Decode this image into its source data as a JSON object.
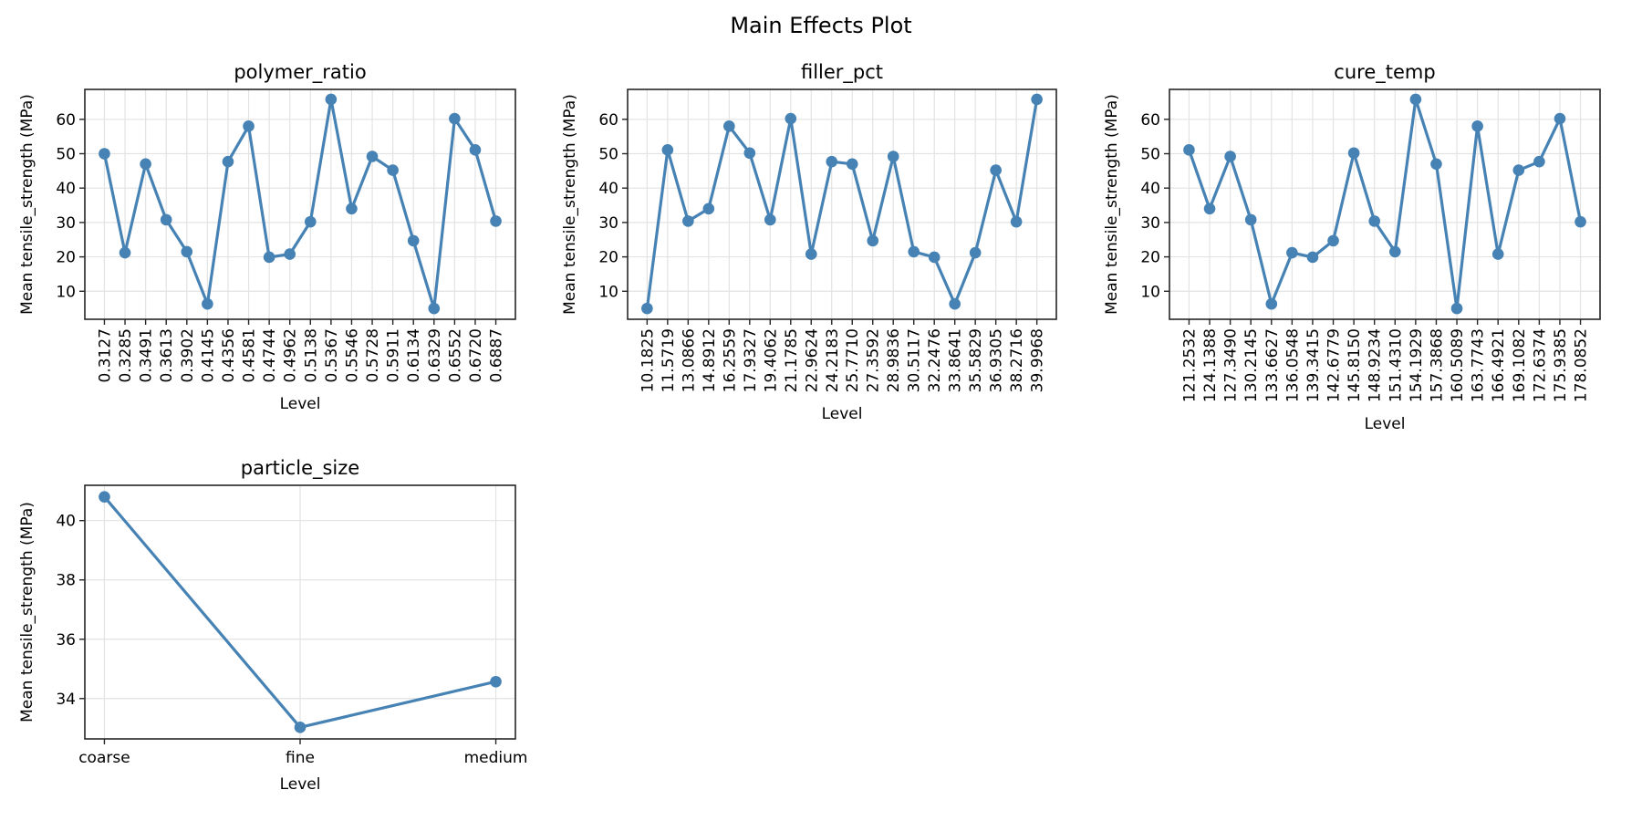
{
  "figure": {
    "title": "Main Effects Plot"
  },
  "colors": {
    "line": "#4682b4",
    "grid": "#e3e3e3",
    "axis": "#262626"
  },
  "chart_data": [
    {
      "type": "line",
      "title": "polymer_ratio",
      "xlabel": "Level",
      "ylabel": "Mean tensile_strength (MPa)",
      "categories": [
        "0.3127",
        "0.3285",
        "0.3491",
        "0.3613",
        "0.3902",
        "0.4145",
        "0.4356",
        "0.4581",
        "0.4744",
        "0.4962",
        "0.5138",
        "0.5367",
        "0.5546",
        "0.5728",
        "0.5911",
        "0.6134",
        "0.6329",
        "0.6552",
        "0.6720",
        "0.6887"
      ],
      "values": [
        50.0,
        21.2,
        47.0,
        30.8,
        21.5,
        6.3,
        47.7,
        58.0,
        19.9,
        20.8,
        30.2,
        65.8,
        34.0,
        49.2,
        45.2,
        24.7,
        5.0,
        60.2,
        51.1,
        30.4
      ],
      "yticks": [
        10,
        20,
        30,
        40,
        50,
        60
      ],
      "ylim": [
        1.85,
        68.7
      ],
      "grid": true,
      "marker": "circle"
    },
    {
      "type": "line",
      "title": "filler_pct",
      "xlabel": "Level",
      "ylabel": "Mean tensile_strength (MPa)",
      "categories": [
        "10.1825",
        "11.5719",
        "13.0866",
        "14.8912",
        "16.2559",
        "17.9327",
        "19.4062",
        "21.1785",
        "22.9624",
        "24.2183",
        "25.7710",
        "27.3592",
        "28.9836",
        "30.5117",
        "32.2476",
        "33.8641",
        "35.5829",
        "36.9305",
        "38.2716",
        "39.9968"
      ],
      "values": [
        5.0,
        51.1,
        30.4,
        34.0,
        58.0,
        50.2,
        30.8,
        60.2,
        20.8,
        47.7,
        47.0,
        24.7,
        49.2,
        21.5,
        19.9,
        6.3,
        21.2,
        45.2,
        30.2,
        65.8
      ],
      "yticks": [
        10,
        20,
        30,
        40,
        50,
        60
      ],
      "ylim": [
        1.85,
        68.7
      ],
      "grid": true,
      "marker": "circle"
    },
    {
      "type": "line",
      "title": "cure_temp",
      "xlabel": "Level",
      "ylabel": "Mean tensile_strength (MPa)",
      "categories": [
        "121.2532",
        "124.1388",
        "127.3490",
        "130.2145",
        "133.6627",
        "136.0548",
        "139.3415",
        "142.6779",
        "145.8150",
        "148.9234",
        "151.4310",
        "154.1929",
        "157.3868",
        "160.5089",
        "163.7743",
        "166.4921",
        "169.1082",
        "172.6374",
        "175.9385",
        "178.0852"
      ],
      "values": [
        51.1,
        34.0,
        49.2,
        30.8,
        6.3,
        21.2,
        19.9,
        24.7,
        50.2,
        30.4,
        21.5,
        65.8,
        47.0,
        5.0,
        58.0,
        20.8,
        45.2,
        47.7,
        60.2,
        30.2
      ],
      "yticks": [
        10,
        20,
        30,
        40,
        50,
        60
      ],
      "ylim": [
        1.85,
        68.7
      ],
      "grid": true,
      "marker": "circle"
    },
    {
      "type": "line",
      "title": "particle_size",
      "xlabel": "Level",
      "ylabel": "Mean tensile_strength (MPa)",
      "categories": [
        "coarse",
        "fine",
        "medium"
      ],
      "values": [
        40.8,
        33.03,
        34.57
      ],
      "yticks": [
        34,
        36,
        38,
        40
      ],
      "ylim": [
        32.64,
        41.19
      ],
      "grid": true,
      "marker": "circle"
    }
  ]
}
